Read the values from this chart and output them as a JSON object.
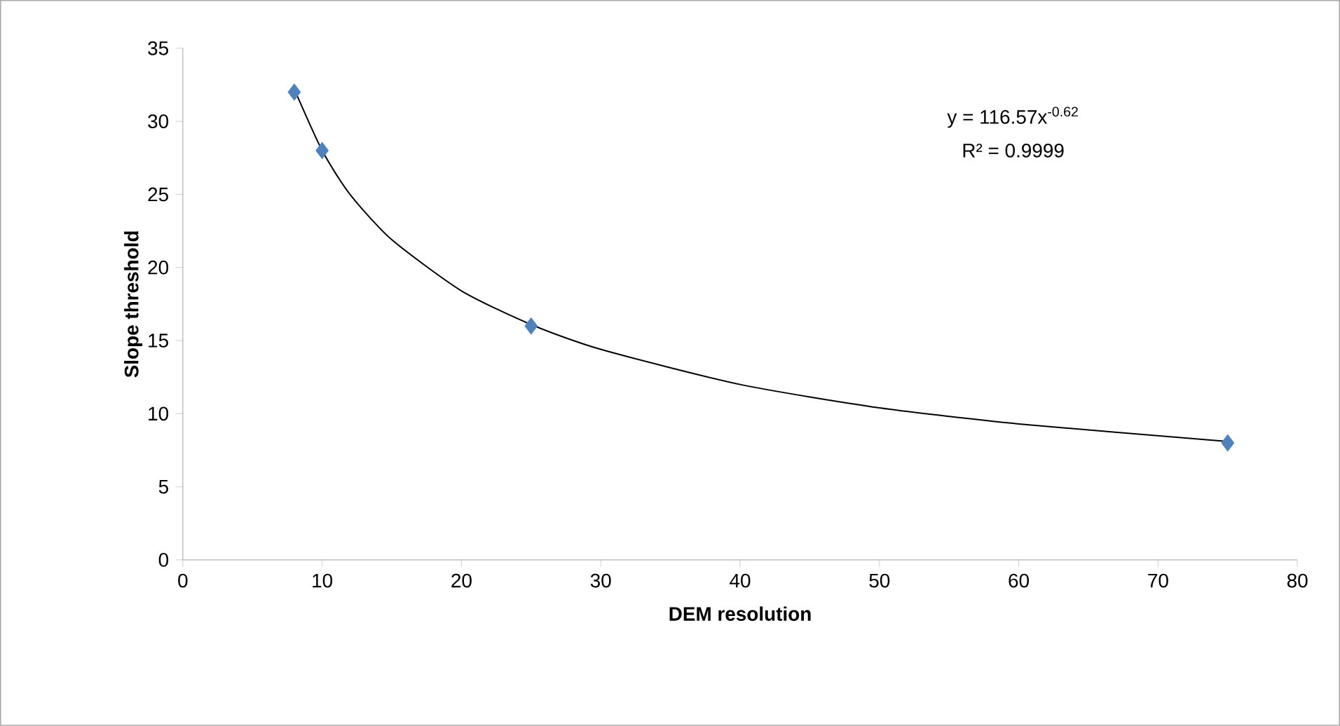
{
  "chart_data": {
    "type": "scatter",
    "xlabel": "DEM resolution",
    "ylabel": "Slope threshold",
    "xlim": [
      0,
      80
    ],
    "xticks": [
      0,
      10,
      20,
      30,
      40,
      50,
      60,
      70,
      80
    ],
    "ylim": [
      0,
      35
    ],
    "yticks": [
      0,
      5,
      10,
      15,
      20,
      25,
      30,
      35
    ],
    "grid": false,
    "marker": "diamond",
    "series": [
      {
        "type": "line",
        "color": "#000000",
        "marker": "none",
        "line_style": "solid",
        "x": [
          8,
          10,
          12,
          15,
          20,
          25,
          30,
          40,
          50,
          60,
          75
        ],
        "values": [
          32.2,
          28.0,
          25.0,
          21.9,
          18.4,
          16.1,
          14.4,
          12.0,
          10.4,
          9.3,
          8.1
        ]
      },
      {
        "color": "#4f81bd",
        "x": [
          8,
          10,
          25,
          75
        ],
        "values": [
          32,
          28,
          16,
          8
        ]
      }
    ],
    "annotations": [
      "y = 116.57x$^{-0.62}$",
      "R² = 0.9999"
    ]
  }
}
